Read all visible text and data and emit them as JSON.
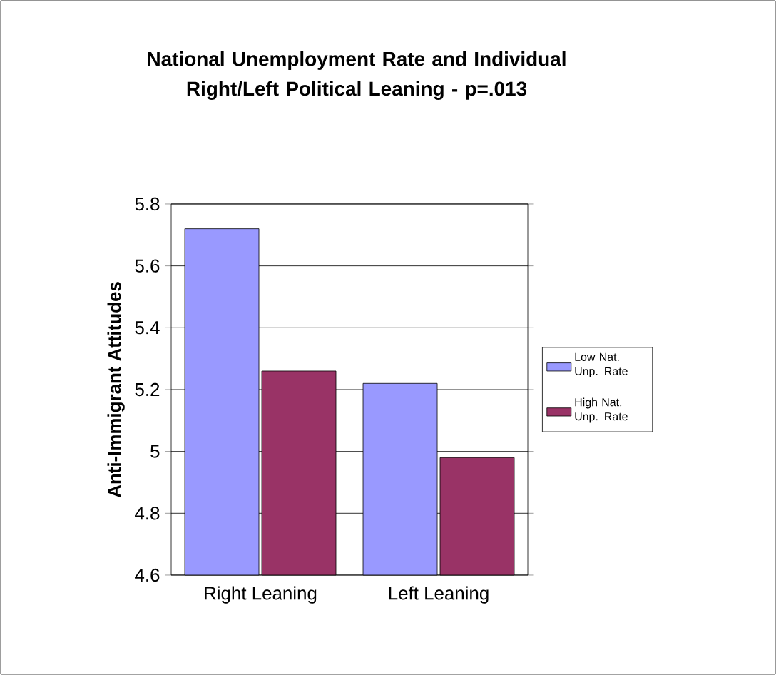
{
  "chart_data": {
    "type": "bar",
    "title": "National Unemployment Rate and Individual Right/Left Political Leaning - p=.013",
    "ylabel": "Anti-Immigrant Attitudes",
    "categories": [
      "Right Leaning",
      "Left Leaning"
    ],
    "series": [
      {
        "name": "Low Nat. Unp. Rate",
        "color": "#9999ff",
        "values": [
          5.72,
          5.22
        ]
      },
      {
        "name": "High Nat. Unp. Rate",
        "color": "#993366",
        "values": [
          5.26,
          4.98
        ]
      }
    ],
    "ylim": [
      4.6,
      5.8
    ],
    "yticks": [
      4.6,
      4.8,
      5,
      5.2,
      5.4,
      5.6,
      5.8
    ],
    "grid": "y",
    "legend": "right"
  }
}
